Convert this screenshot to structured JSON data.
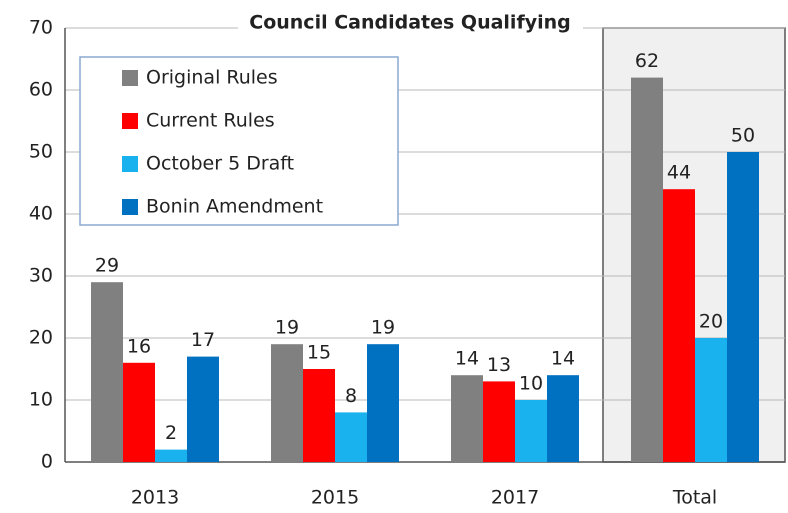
{
  "chart_data": {
    "type": "bar",
    "title": "Council Candidates Qualifying",
    "categories": [
      "2013",
      "2015",
      "2017",
      "Total"
    ],
    "series": [
      {
        "name": "Original Rules",
        "color": "#808080",
        "values": [
          29,
          19,
          14,
          62
        ]
      },
      {
        "name": "Current Rules",
        "color": "#ff0000",
        "values": [
          16,
          15,
          13,
          44
        ]
      },
      {
        "name": "October 5 Draft",
        "color": "#1ab2ee",
        "values": [
          2,
          8,
          10,
          20
        ]
      },
      {
        "name": "Bonin Amendment",
        "color": "#0070c0",
        "values": [
          17,
          19,
          14,
          50
        ]
      }
    ],
    "ylim": [
      0,
      70
    ],
    "yticks": [
      0,
      10,
      20,
      30,
      40,
      50,
      60,
      70
    ],
    "grid": true,
    "legend": "upper left"
  }
}
